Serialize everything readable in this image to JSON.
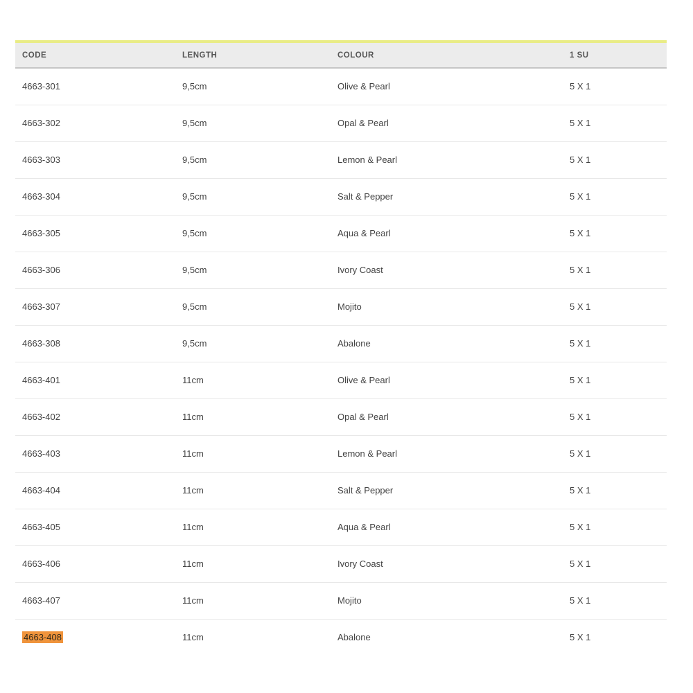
{
  "colors": {
    "accent_bar_yellow": "#e9ec86",
    "header_bg": "#ececec",
    "header_border": "#c6c6c6",
    "row_divider": "#e8e8e8",
    "highlight_orange": "#f0943c",
    "cell_text": "#434343",
    "header_text": "#565656"
  },
  "table": {
    "columns": [
      {
        "key": "code",
        "label": "CODE"
      },
      {
        "key": "length",
        "label": "LENGTH"
      },
      {
        "key": "colour",
        "label": "COLOUR"
      },
      {
        "key": "su",
        "label": "1 SU"
      }
    ],
    "rows": [
      {
        "code": "4663-301",
        "length": "9,5cm",
        "colour": "Olive & Pearl",
        "su": "5 X 1",
        "highlighted": false
      },
      {
        "code": "4663-302",
        "length": "9,5cm",
        "colour": "Opal & Pearl",
        "su": "5 X 1",
        "highlighted": false
      },
      {
        "code": "4663-303",
        "length": "9,5cm",
        "colour": "Lemon & Pearl",
        "su": "5 X 1",
        "highlighted": false
      },
      {
        "code": "4663-304",
        "length": "9,5cm",
        "colour": "Salt & Pepper",
        "su": "5 X 1",
        "highlighted": false
      },
      {
        "code": "4663-305",
        "length": "9,5cm",
        "colour": "Aqua & Pearl",
        "su": "5 X 1",
        "highlighted": false
      },
      {
        "code": "4663-306",
        "length": "9,5cm",
        "colour": "Ivory Coast",
        "su": "5 X 1",
        "highlighted": false
      },
      {
        "code": "4663-307",
        "length": "9,5cm",
        "colour": "Mojito",
        "su": "5 X 1",
        "highlighted": false
      },
      {
        "code": "4663-308",
        "length": "9,5cm",
        "colour": "Abalone",
        "su": "5 X 1",
        "highlighted": false
      },
      {
        "code": "4663-401",
        "length": "11cm",
        "colour": "Olive & Pearl",
        "su": "5 X 1",
        "highlighted": false
      },
      {
        "code": "4663-402",
        "length": "11cm",
        "colour": "Opal & Pearl",
        "su": "5 X 1",
        "highlighted": false
      },
      {
        "code": "4663-403",
        "length": "11cm",
        "colour": "Lemon & Pearl",
        "su": "5 X 1",
        "highlighted": false
      },
      {
        "code": "4663-404",
        "length": "11cm",
        "colour": "Salt & Pepper",
        "su": "5 X 1",
        "highlighted": false
      },
      {
        "code": "4663-405",
        "length": "11cm",
        "colour": "Aqua & Pearl",
        "su": "5 X 1",
        "highlighted": false
      },
      {
        "code": "4663-406",
        "length": "11cm",
        "colour": "Ivory Coast",
        "su": "5 X 1",
        "highlighted": false
      },
      {
        "code": "4663-407",
        "length": "11cm",
        "colour": "Mojito",
        "su": "5 X 1",
        "highlighted": false
      },
      {
        "code": "4663-408",
        "length": "11cm",
        "colour": "Abalone",
        "su": "5 X 1",
        "highlighted": true
      }
    ]
  }
}
